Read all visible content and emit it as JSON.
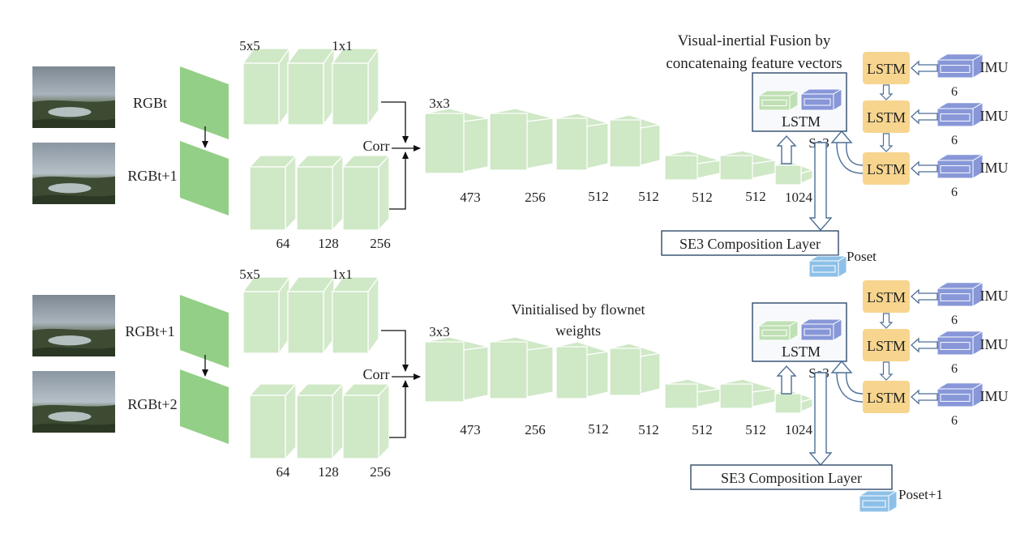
{
  "title_line1": "Visual-inertial Fusion by",
  "title_line2": "concatenaing feature vectors",
  "mid_note_line1": "Vinitialised by flownet",
  "mid_note_line2": "weights",
  "colors": {
    "green_block": "#cfe8c6",
    "green_edge": "#ffffff",
    "green_input": "#93cf86",
    "lstm_fill": "#f7d58e",
    "imu_blue": "#8797d8",
    "pose_blue": "#8cc0e8",
    "box_edge": "#2f4a6a"
  },
  "streams": [
    {
      "input1": "RGBt",
      "input2": "RGBt+1",
      "kernel_a": "5x5",
      "kernel_b": "1x1",
      "kernel_c": "3x3",
      "corr": "Corr",
      "upper_channels": [],
      "lower_channels": [
        "64",
        "128",
        "256"
      ],
      "conv_channels": [
        "473",
        "256",
        "512",
        "512",
        "512",
        "512",
        "1024"
      ],
      "fusion_label": "LSTM",
      "se_label": "Se3",
      "composition_label": "SE3 Composition Layer",
      "pose_label": "Poset",
      "lstm_labels": [
        "LSTM",
        "LSTM",
        "LSTM"
      ],
      "imu_labels": [
        "IMU",
        "IMU",
        "IMU"
      ],
      "imu_dims": [
        "6",
        "6",
        "6"
      ]
    },
    {
      "input1": "RGBt+1",
      "input2": "RGBt+2",
      "kernel_a": "5x5",
      "kernel_b": "1x1",
      "kernel_c": "3x3",
      "corr": "Corr",
      "upper_channels": [],
      "lower_channels": [
        "64",
        "128",
        "256"
      ],
      "conv_channels": [
        "473",
        "256",
        "512",
        "512",
        "512",
        "512",
        "1024"
      ],
      "fusion_label": "LSTM",
      "se_label": "Se3",
      "composition_label": "SE3 Composition Layer",
      "pose_label": "Poset+1",
      "lstm_labels": [
        "LSTM",
        "LSTM",
        "LSTM"
      ],
      "imu_labels": [
        "IMU",
        "IMU",
        "IMU"
      ],
      "imu_dims": [
        "6",
        "6",
        "6"
      ]
    }
  ]
}
